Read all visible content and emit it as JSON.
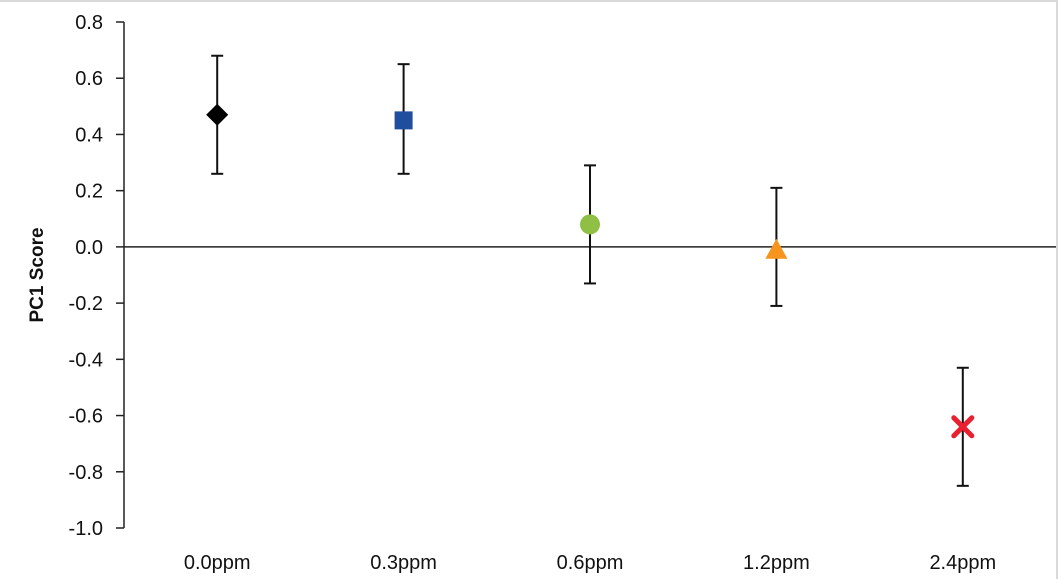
{
  "chart_data": {
    "type": "scatter",
    "title": "",
    "xlabel": "",
    "ylabel": "PC1 Score",
    "ylim": [
      -1.0,
      0.8
    ],
    "ytick_step": 0.2,
    "yticks": [
      "0.8",
      "0.6",
      "0.4",
      "0.2",
      "0.0",
      "-0.2",
      "-0.4",
      "-0.6",
      "-0.8",
      "-1.0"
    ],
    "categories": [
      "0.0ppm",
      "0.3ppm",
      "0.6ppm",
      "1.2ppm",
      "2.4ppm"
    ],
    "points": [
      {
        "category": "0.0ppm",
        "y": 0.47,
        "err_low": 0.26,
        "err_high": 0.68,
        "marker": "diamond",
        "color": "#000000"
      },
      {
        "category": "0.3ppm",
        "y": 0.45,
        "err_low": 0.26,
        "err_high": 0.65,
        "marker": "square",
        "color": "#1f4e9c"
      },
      {
        "category": "0.6ppm",
        "y": 0.08,
        "err_low": -0.13,
        "err_high": 0.29,
        "marker": "circle",
        "color": "#8fbf45"
      },
      {
        "category": "1.2ppm",
        "y": -0.01,
        "err_low": -0.21,
        "err_high": 0.21,
        "marker": "triangle",
        "color": "#f7941d"
      },
      {
        "category": "2.4ppm",
        "y": -0.64,
        "err_low": -0.85,
        "err_high": -0.43,
        "marker": "x",
        "color": "#e8202f"
      }
    ],
    "grid": false,
    "legend": "none"
  }
}
